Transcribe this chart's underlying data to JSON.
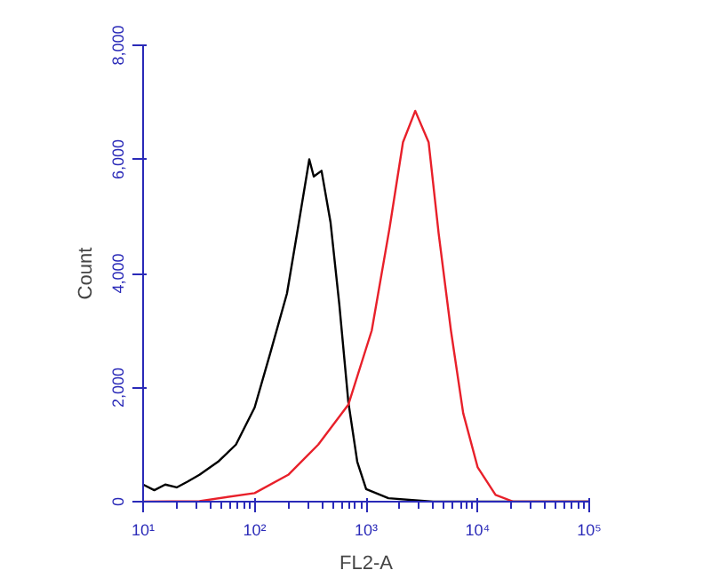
{
  "chart_data": {
    "type": "line",
    "xlabel": "FL2-A",
    "ylabel": "Count",
    "log": "x",
    "grid": false,
    "xlim": [
      10,
      100000
    ],
    "xticks": [
      {
        "value": 10,
        "label": "10¹"
      },
      {
        "value": 100,
        "label": "10²"
      },
      {
        "value": 1000,
        "label": "10³"
      },
      {
        "value": 10000,
        "label": "10⁴"
      },
      {
        "value": 100000,
        "label": "10⁵"
      }
    ],
    "ylim": [
      0,
      8000
    ],
    "yticks": [
      {
        "value": 0,
        "label": "0"
      },
      {
        "value": 2000,
        "label": "2,000"
      },
      {
        "value": 4000,
        "label": "4,000"
      },
      {
        "value": 6000,
        "label": "6,000"
      },
      {
        "value": 8000,
        "label": "8,000"
      }
    ],
    "series": [
      {
        "color": "#000000",
        "x": [
          10,
          12.6,
          15.8,
          20,
          25,
          32,
          47,
          68,
          100,
          138,
          195,
          240,
          309,
          339,
          398,
          479,
          575,
          692,
          832,
          1000,
          1585,
          3981,
          100000
        ],
        "values": [
          300,
          200,
          300,
          250,
          350,
          470,
          700,
          1000,
          1650,
          2600,
          3650,
          4700,
          6000,
          5700,
          5800,
          4900,
          3450,
          1750,
          700,
          220,
          60,
          0,
          0
        ]
      },
      {
        "color": "#e8202a",
        "x": [
          10,
          32,
          100,
          200,
          372,
          692,
          1122,
          1622,
          2138,
          2754,
          3631,
          4467,
          5754,
          7413,
          10000,
          14454,
          20893,
          100000
        ],
        "values": [
          0,
          10,
          150,
          470,
          1000,
          1700,
          3000,
          4800,
          6300,
          6850,
          6300,
          4700,
          3000,
          1550,
          600,
          120,
          0,
          0
        ]
      }
    ]
  }
}
